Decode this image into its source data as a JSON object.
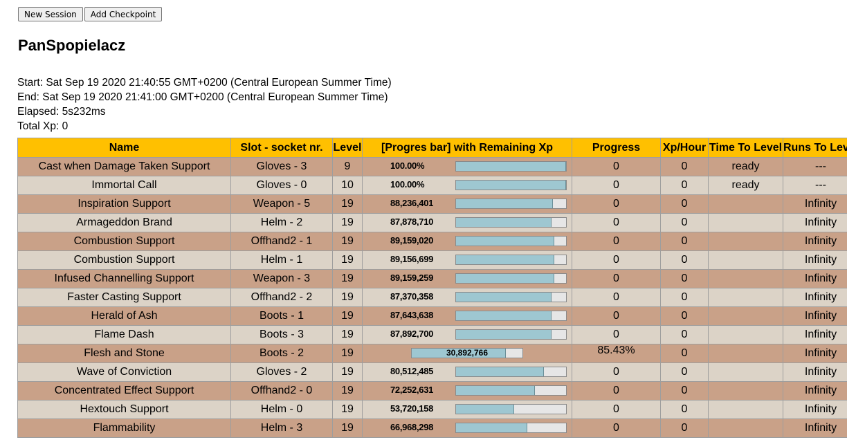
{
  "toolbar": {
    "new_session": "New Session",
    "add_checkpoint": "Add Checkpoint"
  },
  "title": "PanSpopielacz",
  "info": {
    "start": "Start: Sat Sep 19 2020 21:40:55 GMT+0200 (Central European Summer Time)",
    "end": "End: Sat Sep 19 2020 21:41:00 GMT+0200 (Central European Summer Time)",
    "elapsed": "Elapsed: 5s232ms",
    "total_xp": "Total Xp: 0"
  },
  "columns": [
    "Name",
    "Slot - socket nr.",
    "Level",
    "[Progres bar] with Remaining Xp",
    "Progress",
    "Xp/Hour",
    "Time To Level",
    "Runs To Level"
  ],
  "rows": [
    {
      "name": "Cast when Damage Taken Support",
      "slot": "Gloves - 3",
      "level": "9",
      "bar_text": "100.00%",
      "fill": 1.0,
      "progress": "0",
      "xph": "0",
      "ttl": "ready",
      "rtl": "---"
    },
    {
      "name": "Immortal Call",
      "slot": "Gloves - 0",
      "level": "10",
      "bar_text": "100.00%",
      "fill": 1.0,
      "progress": "0",
      "xph": "0",
      "ttl": "ready",
      "rtl": "---"
    },
    {
      "name": "Inspiration Support",
      "slot": "Weapon - 5",
      "level": "19",
      "bar_text": "88,236,401",
      "fill": 0.88,
      "progress": "0",
      "xph": "0",
      "ttl": "",
      "rtl": "Infinity"
    },
    {
      "name": "Armageddon Brand",
      "slot": "Helm - 2",
      "level": "19",
      "bar_text": "87,878,710",
      "fill": 0.87,
      "progress": "0",
      "xph": "0",
      "ttl": "",
      "rtl": "Infinity"
    },
    {
      "name": "Combustion Support",
      "slot": "Offhand2 - 1",
      "level": "19",
      "bar_text": "89,159,020",
      "fill": 0.89,
      "progress": "0",
      "xph": "0",
      "ttl": "",
      "rtl": "Infinity"
    },
    {
      "name": "Combustion Support",
      "slot": "Helm - 1",
      "level": "19",
      "bar_text": "89,156,699",
      "fill": 0.89,
      "progress": "0",
      "xph": "0",
      "ttl": "",
      "rtl": "Infinity"
    },
    {
      "name": "Infused Channelling Support",
      "slot": "Weapon - 3",
      "level": "19",
      "bar_text": "89,159,259",
      "fill": 0.89,
      "progress": "0",
      "xph": "0",
      "ttl": "",
      "rtl": "Infinity"
    },
    {
      "name": "Faster Casting Support",
      "slot": "Offhand2 - 2",
      "level": "19",
      "bar_text": "87,370,358",
      "fill": 0.87,
      "progress": "0",
      "xph": "0",
      "ttl": "",
      "rtl": "Infinity"
    },
    {
      "name": "Herald of Ash",
      "slot": "Boots - 1",
      "level": "19",
      "bar_text": "87,643,638",
      "fill": 0.87,
      "progress": "0",
      "xph": "0",
      "ttl": "",
      "rtl": "Infinity"
    },
    {
      "name": "Flame Dash",
      "slot": "Boots - 3",
      "level": "19",
      "bar_text": "87,892,700",
      "fill": 0.87,
      "progress": "0",
      "xph": "0",
      "ttl": "",
      "rtl": "Infinity"
    },
    {
      "name": "Flesh and Stone",
      "slot": "Boots - 2",
      "level": "19",
      "bar_text": "30,892,766",
      "fill": 0.85,
      "wide": true,
      "progress": "85.43%",
      "xph": "0",
      "ttl": "",
      "rtl": "Infinity"
    },
    {
      "name": "Wave of Conviction",
      "slot": "Gloves - 2",
      "level": "19",
      "bar_text": "80,512,485",
      "fill": 0.8,
      "progress": "0",
      "xph": "0",
      "ttl": "",
      "rtl": "Infinity"
    },
    {
      "name": "Concentrated Effect Support",
      "slot": "Offhand2 - 0",
      "level": "19",
      "bar_text": "72,252,631",
      "fill": 0.72,
      "progress": "0",
      "xph": "0",
      "ttl": "",
      "rtl": "Infinity"
    },
    {
      "name": "Hextouch Support",
      "slot": "Helm - 0",
      "level": "19",
      "bar_text": "53,720,158",
      "fill": 0.53,
      "progress": "0",
      "xph": "0",
      "ttl": "",
      "rtl": "Infinity"
    },
    {
      "name": "Flammability",
      "slot": "Helm - 3",
      "level": "19",
      "bar_text": "66,968,298",
      "fill": 0.65,
      "progress": "0",
      "xph": "0",
      "ttl": "",
      "rtl": "Infinity"
    }
  ]
}
